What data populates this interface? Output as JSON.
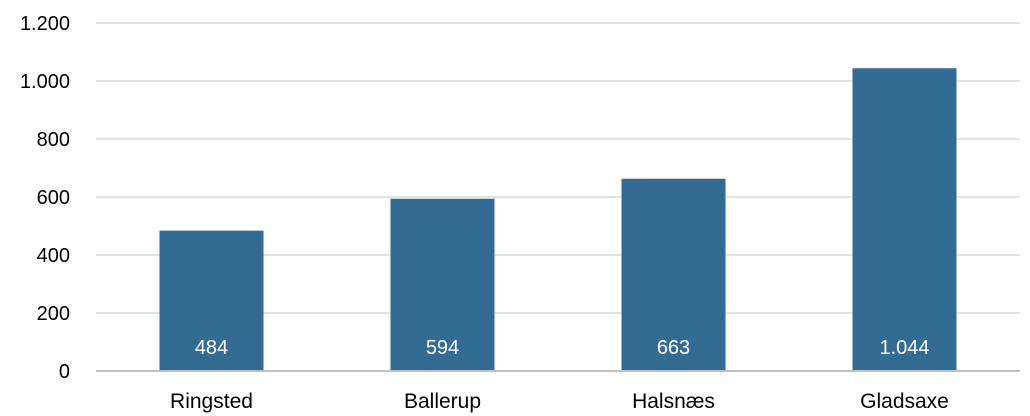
{
  "chart_data": {
    "type": "bar",
    "categories": [
      "Ringsted",
      "Ballerup",
      "Halsnæs",
      "Gladsaxe"
    ],
    "values": [
      484,
      594,
      663,
      1044
    ],
    "data_labels": [
      "484",
      "594",
      "663",
      "1.044"
    ],
    "title": "",
    "xlabel": "",
    "ylabel": "",
    "ylim": [
      0,
      1200
    ],
    "y_ticks": [
      0,
      200,
      400,
      600,
      800,
      1000,
      1200
    ],
    "y_tick_labels": [
      "0",
      "200",
      "400",
      "600",
      "800",
      "1.000",
      "1.200"
    ],
    "grid": true,
    "legend": "none",
    "colors": {
      "bar": "#336b93",
      "grid": "#d9d9d9",
      "axis": "#bfbfbf"
    }
  }
}
